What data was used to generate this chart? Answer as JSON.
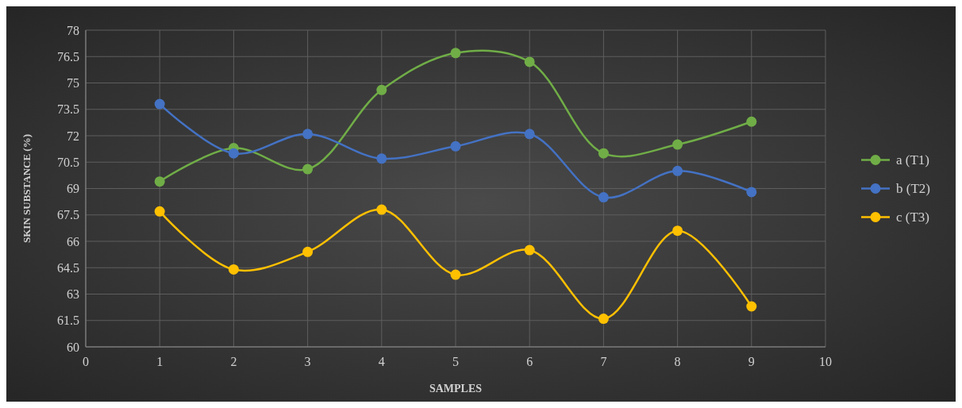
{
  "chart_data": {
    "type": "line",
    "xlabel": "SAMPLES",
    "ylabel": "SKIN SUBSTANCE (%)",
    "x": [
      1,
      2,
      3,
      4,
      5,
      6,
      7,
      8,
      9
    ],
    "xlim": [
      0,
      10
    ],
    "xticks": [
      0,
      1,
      2,
      3,
      4,
      5,
      6,
      7,
      8,
      9,
      10
    ],
    "ylim": [
      60,
      78
    ],
    "yticks": [
      60,
      61.5,
      63,
      64.5,
      66,
      67.5,
      69,
      70.5,
      72,
      73.5,
      75,
      76.5,
      78
    ],
    "grid": true,
    "legend": "right",
    "marker": "circle",
    "line_style": "solid",
    "series": [
      {
        "name": "a (T1)",
        "color": "#70ad47",
        "values": [
          69.4,
          71.3,
          70.1,
          74.6,
          76.7,
          76.2,
          71.0,
          71.5,
          72.8
        ]
      },
      {
        "name": "b (T2)",
        "color": "#4472c4",
        "values": [
          73.8,
          71.0,
          72.1,
          70.7,
          71.4,
          72.1,
          68.5,
          70.0,
          68.8
        ]
      },
      {
        "name": "c (T3)",
        "color": "#ffc000",
        "values": [
          67.7,
          64.4,
          65.4,
          67.8,
          64.1,
          65.5,
          61.6,
          66.6,
          62.3
        ]
      }
    ]
  }
}
